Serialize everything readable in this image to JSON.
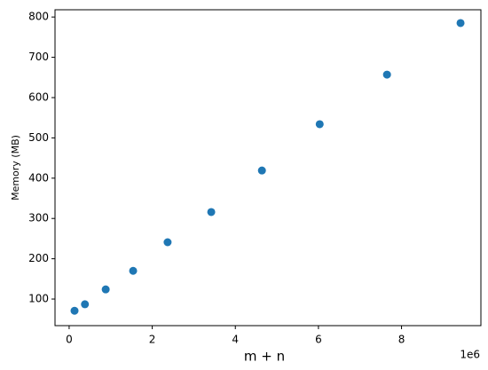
{
  "chart_data": {
    "type": "scatter",
    "x_label": "m + n",
    "y_label": "Memory (MB)",
    "x_offset_label": "1e6",
    "x": [
      0.13,
      0.38,
      0.88,
      1.54,
      2.37,
      3.42,
      4.64,
      6.03,
      7.65,
      9.42
    ],
    "values": [
      71,
      87,
      124,
      170,
      241,
      316,
      419,
      534,
      657,
      785
    ],
    "color": "#1f77b4",
    "xlim": [
      -0.34,
      9.91
    ],
    "xticks": [
      0,
      2,
      4,
      6,
      8
    ],
    "ylim": [
      34,
      818
    ],
    "yticks": [
      100,
      200,
      300,
      400,
      500,
      600,
      700,
      800
    ],
    "grid": false
  }
}
